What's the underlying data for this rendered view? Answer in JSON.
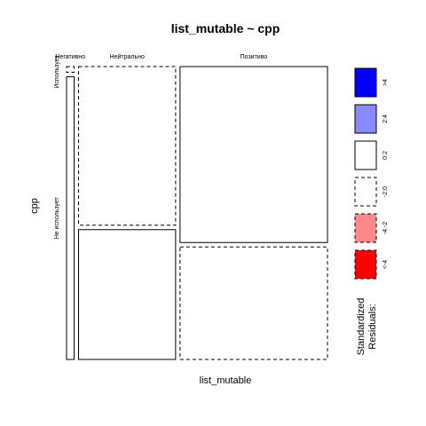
{
  "chart_data": {
    "type": "mosaic",
    "title": "list_mutable ~ cpp",
    "xlabel": "list_mutable",
    "ylabel": "cpp",
    "x_categories": [
      "Негативно",
      "Нейтрально",
      "Позитиво"
    ],
    "y_categories": [
      "Использует",
      "Не использует"
    ],
    "x_proportions": [
      0.03,
      0.385,
      0.585
    ],
    "y_proportions_within_x": [
      [
        0.02,
        0.98
      ],
      [
        0.55,
        0.45
      ],
      [
        0.61,
        0.39
      ]
    ],
    "residual_styles": [
      [
        "dashed",
        "solid"
      ],
      [
        "dashed",
        "solid"
      ],
      [
        "solid",
        "dashed"
      ]
    ],
    "legend": {
      "title": "Standardized\nResiduals:",
      "title_lines": [
        "Standardized",
        "Residuals:"
      ],
      "entries": [
        {
          "label": ">4",
          "fill": "#0000ff",
          "border": "solid"
        },
        {
          "label": "2:4",
          "fill": "#8888ff",
          "border": "solid"
        },
        {
          "label": "0:2",
          "fill": "#ffffff",
          "border": "solid"
        },
        {
          "label": "-2:0",
          "fill": "#ffffff",
          "border": "dashed"
        },
        {
          "label": "-4:-2",
          "fill": "#ff8888",
          "border": "dashed"
        },
        {
          "label": "<-4",
          "fill": "#ff0000",
          "border": "dashed"
        }
      ]
    }
  }
}
